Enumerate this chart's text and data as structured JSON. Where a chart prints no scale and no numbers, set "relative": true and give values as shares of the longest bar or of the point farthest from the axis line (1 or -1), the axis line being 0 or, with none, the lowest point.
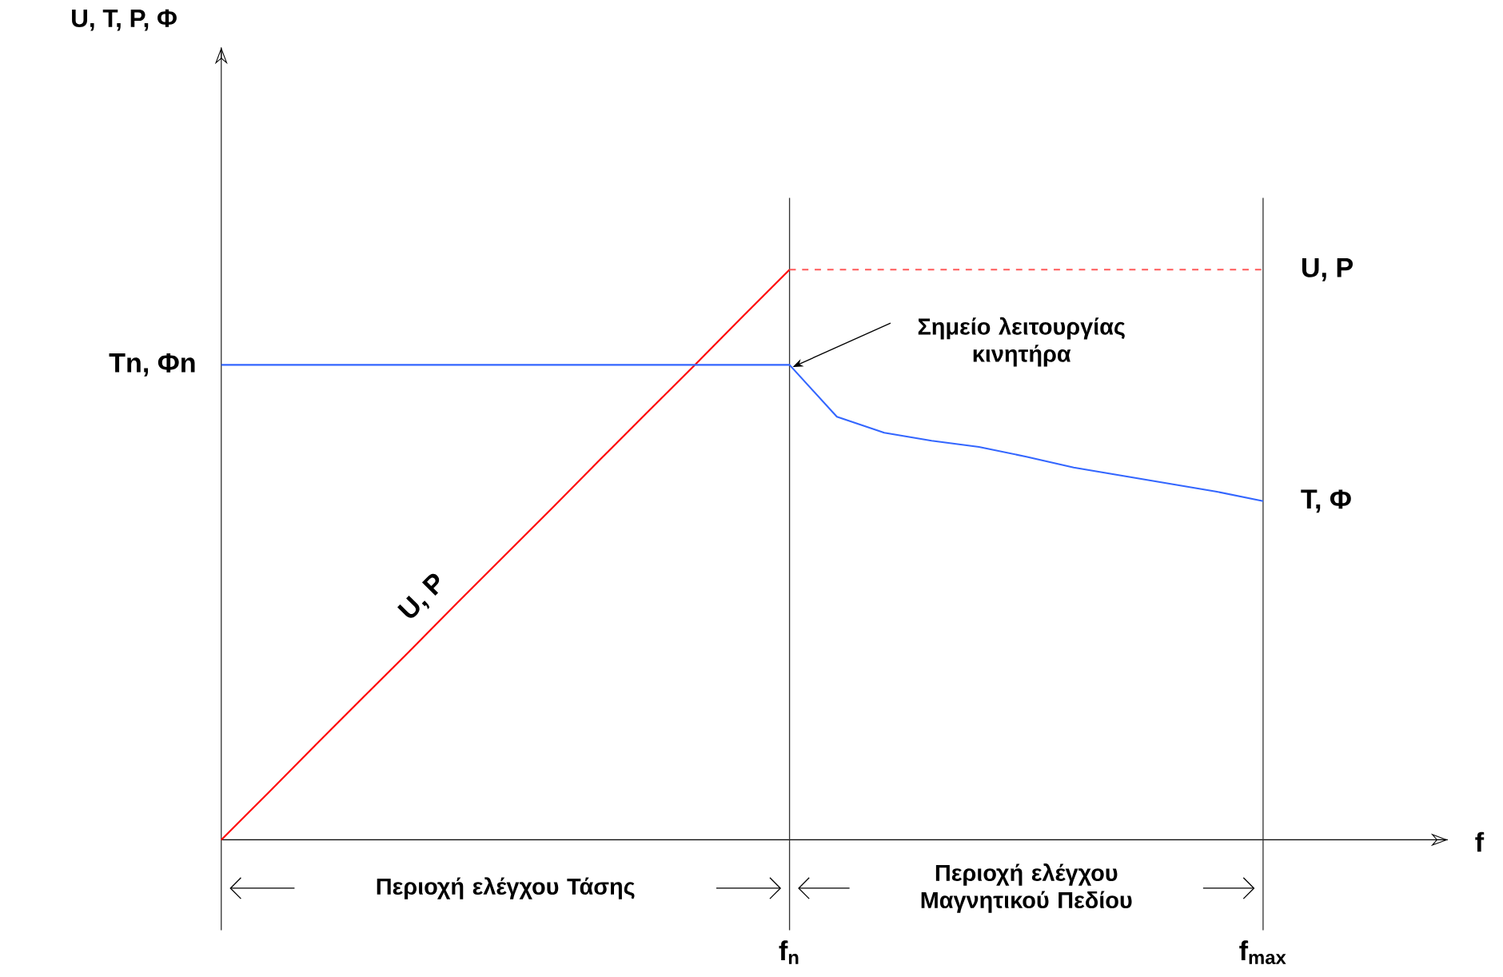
{
  "chart_data": {
    "type": "line",
    "relative": true,
    "grid": "x",
    "categories": [
      null,
      null,
      null,
      null,
      null,
      null,
      null,
      null,
      null,
      null,
      null,
      null,
      "f$_{n}$",
      null,
      null,
      null,
      null,
      null,
      null,
      null,
      null,
      null,
      "f$_{max}$"
    ],
    "series": [
      {
        "name": "U, P",
        "color": "#ff0000",
        "values": [
          0,
          0.083,
          0.167,
          0.25,
          0.333,
          0.417,
          0.5,
          0.583,
          0.667,
          0.75,
          0.833,
          0.917,
          1,
          null,
          null,
          null,
          null,
          null,
          null,
          null,
          null,
          null,
          null
        ]
      },
      {
        "name": "U, P",
        "color": "#ff5a5a",
        "line_style": "dashed",
        "values": [
          null,
          null,
          null,
          null,
          null,
          null,
          null,
          null,
          null,
          null,
          null,
          null,
          1,
          1,
          1,
          1,
          1,
          1,
          1,
          1,
          1,
          1,
          1
        ]
      },
      {
        "name": "T, Φ",
        "color": "#3366ff",
        "values": [
          0.833,
          0.833,
          0.833,
          0.833,
          0.833,
          0.833,
          0.833,
          0.833,
          0.833,
          0.833,
          0.833,
          0.833,
          0.833,
          0.742,
          0.714,
          0.7,
          0.689,
          0.672,
          0.653,
          0.639,
          0.625,
          0.611,
          0.594
        ]
      }
    ],
    "annotations": [
      "Σημείο λειτουργίας κινητήρα",
      "Tn, Φn",
      "Περιοχή ελέγχου  Τάσης",
      "Περιοχή ελέγχου Μαγνητικού Πεδίου",
      "U, T, P, Φ",
      "f"
    ]
  }
}
